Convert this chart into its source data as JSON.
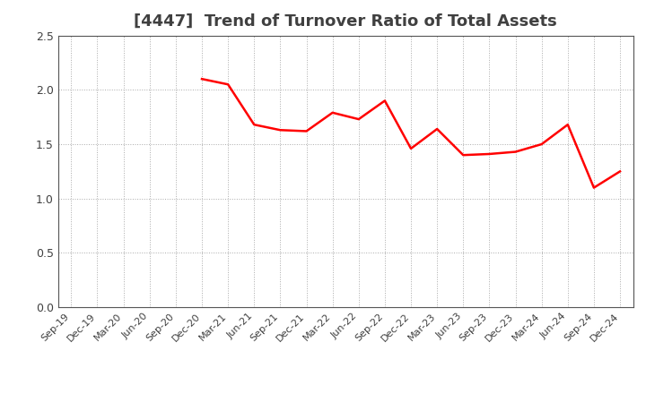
{
  "title": "[4447]  Trend of Turnover Ratio of Total Assets",
  "x_labels": [
    "Sep-19",
    "Dec-19",
    "Mar-20",
    "Jun-20",
    "Sep-20",
    "Dec-20",
    "Mar-21",
    "Jun-21",
    "Sep-21",
    "Dec-21",
    "Mar-22",
    "Jun-22",
    "Sep-22",
    "Dec-22",
    "Mar-23",
    "Jun-23",
    "Sep-23",
    "Dec-23",
    "Mar-24",
    "Jun-24",
    "Sep-24",
    "Dec-24"
  ],
  "y_values": [
    null,
    null,
    null,
    null,
    null,
    2.1,
    2.05,
    1.68,
    1.63,
    1.62,
    1.79,
    1.73,
    1.9,
    1.46,
    1.64,
    1.4,
    1.41,
    1.43,
    1.5,
    1.68,
    1.1,
    1.25
  ],
  "ylim": [
    0.0,
    2.5
  ],
  "yticks": [
    0.0,
    0.5,
    1.0,
    1.5,
    2.0,
    2.5
  ],
  "line_color": "#ff0000",
  "line_width": 1.8,
  "background_color": "#ffffff",
  "grid_color": "#aaaaaa",
  "title_fontsize": 13,
  "tick_fontsize": 8,
  "title_color": "#404040"
}
